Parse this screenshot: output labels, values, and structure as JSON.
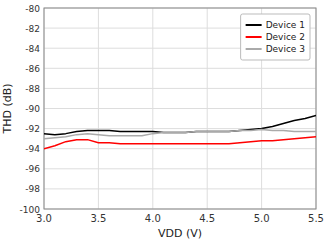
{
  "chart_data": {
    "type": "line",
    "x_label": "VDD (V)",
    "y_label": "THD (dB)",
    "x": [
      3.0,
      3.1,
      3.2,
      3.3,
      3.4,
      3.5,
      3.6,
      3.7,
      3.8,
      3.9,
      4.0,
      4.1,
      4.2,
      4.3,
      4.4,
      4.5,
      4.6,
      4.7,
      4.8,
      4.9,
      5.0,
      5.1,
      5.2,
      5.3,
      5.4,
      5.5
    ],
    "series": [
      {
        "name": "Device 1",
        "color": "#000000",
        "values": [
          -92.5,
          -92.6,
          -92.5,
          -92.3,
          -92.2,
          -92.2,
          -92.2,
          -92.3,
          -92.3,
          -92.3,
          -92.3,
          -92.4,
          -92.4,
          -92.4,
          -92.3,
          -92.3,
          -92.3,
          -92.3,
          -92.2,
          -92.1,
          -92.0,
          -91.8,
          -91.5,
          -91.2,
          -91.0,
          -90.7
        ]
      },
      {
        "name": "Device 2",
        "color": "#ff0000",
        "values": [
          -94.0,
          -93.7,
          -93.3,
          -93.1,
          -93.1,
          -93.4,
          -93.4,
          -93.5,
          -93.5,
          -93.5,
          -93.5,
          -93.5,
          -93.5,
          -93.5,
          -93.5,
          -93.5,
          -93.5,
          -93.5,
          -93.4,
          -93.3,
          -93.2,
          -93.2,
          -93.1,
          -93.0,
          -92.9,
          -92.8
        ]
      },
      {
        "name": "Device 3",
        "color": "#aaaaaa",
        "values": [
          -93.0,
          -92.9,
          -92.8,
          -92.6,
          -92.5,
          -92.6,
          -92.7,
          -92.7,
          -92.7,
          -92.7,
          -92.5,
          -92.4,
          -92.4,
          -92.4,
          -92.3,
          -92.3,
          -92.3,
          -92.3,
          -92.2,
          -92.2,
          -92.1,
          -92.2,
          -92.2,
          -92.3,
          -92.3,
          -92.3
        ]
      }
    ],
    "xlim": [
      3,
      5.5
    ],
    "ylim": [
      -100,
      -80
    ],
    "xticks": [
      {
        "value": 3,
        "label": "3.0"
      },
      3.5,
      {
        "value": 4,
        "label": "4.0"
      },
      4.5,
      {
        "value": 5,
        "label": "5.0"
      },
      5.5
    ],
    "yticks": [
      -100,
      -98,
      -96,
      -94,
      -92,
      -90,
      -88,
      -86,
      -84,
      -82,
      -80
    ],
    "grid": true,
    "legend": "upper right"
  }
}
